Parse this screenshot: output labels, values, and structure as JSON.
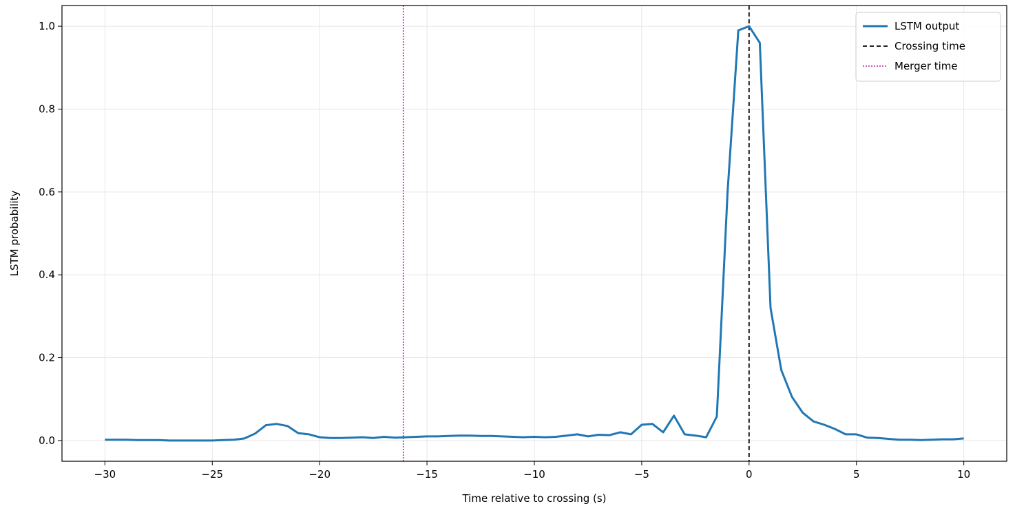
{
  "chart_data": {
    "type": "line",
    "title": "",
    "xlabel": "Time relative to crossing (s)",
    "ylabel": "LSTM probability",
    "xlim": [
      -32,
      12
    ],
    "ylim": [
      -0.05,
      1.05
    ],
    "xticks": [
      -30,
      -25,
      -20,
      -15,
      -10,
      -5,
      0,
      5,
      10
    ],
    "xtick_labels": [
      "−30",
      "−25",
      "−20",
      "−15",
      "−10",
      "−5",
      "0",
      "5",
      "10"
    ],
    "yticks": [
      0.0,
      0.2,
      0.4,
      0.6,
      0.8,
      1.0
    ],
    "ytick_labels": [
      "0.0",
      "0.2",
      "0.4",
      "0.6",
      "0.8",
      "1.0"
    ],
    "grid": true,
    "legend_position": "top-right",
    "series": [
      {
        "name": "LSTM output",
        "color": "#1f77b4",
        "style": "solid",
        "x": [
          -30,
          -29.5,
          -29,
          -28.5,
          -28,
          -27.5,
          -27,
          -26.5,
          -26,
          -25.5,
          -25,
          -24.5,
          -24,
          -23.5,
          -23,
          -22.5,
          -22,
          -21.5,
          -21,
          -20.5,
          -20,
          -19.5,
          -19,
          -18.5,
          -18,
          -17.5,
          -17,
          -16.5,
          -16,
          -15.5,
          -15,
          -14.5,
          -14,
          -13.5,
          -13,
          -12.5,
          -12,
          -11.5,
          -11,
          -10.5,
          -10,
          -9.5,
          -9,
          -8.5,
          -8,
          -7.5,
          -7,
          -6.5,
          -6,
          -5.5,
          -5,
          -4.5,
          -4,
          -3.5,
          -3,
          -2.5,
          -2,
          -1.5,
          -1,
          -0.5,
          0,
          0.5,
          1,
          1.5,
          2,
          2.5,
          3,
          3.5,
          4,
          4.5,
          5,
          5.5,
          6,
          6.5,
          7,
          7.5,
          8,
          8.5,
          9,
          9.5,
          10
        ],
        "y": [
          0.002,
          0.002,
          0.002,
          0.001,
          0.001,
          0.001,
          0.0,
          0.0,
          0.0,
          0.0,
          0.0,
          0.001,
          0.002,
          0.005,
          0.017,
          0.037,
          0.04,
          0.035,
          0.018,
          0.015,
          0.008,
          0.006,
          0.006,
          0.007,
          0.008,
          0.006,
          0.009,
          0.007,
          0.008,
          0.009,
          0.01,
          0.01,
          0.011,
          0.012,
          0.012,
          0.011,
          0.011,
          0.01,
          0.009,
          0.008,
          0.009,
          0.008,
          0.009,
          0.012,
          0.015,
          0.01,
          0.014,
          0.013,
          0.02,
          0.015,
          0.038,
          0.04,
          0.02,
          0.06,
          0.015,
          0.012,
          0.008,
          0.058,
          0.6,
          0.99,
          1.0,
          0.96,
          0.32,
          0.17,
          0.105,
          0.067,
          0.046,
          0.038,
          0.028,
          0.015,
          0.015,
          0.007,
          0.006,
          0.004,
          0.002,
          0.002,
          0.001,
          0.002,
          0.003,
          0.003,
          0.005
        ]
      }
    ],
    "vlines": [
      {
        "name": "Crossing time",
        "x": 0,
        "color": "#000000",
        "style": "dashed"
      },
      {
        "name": "Merger time",
        "x": -16.1,
        "color": "#bf3fbf",
        "style": "dotted"
      }
    ]
  }
}
